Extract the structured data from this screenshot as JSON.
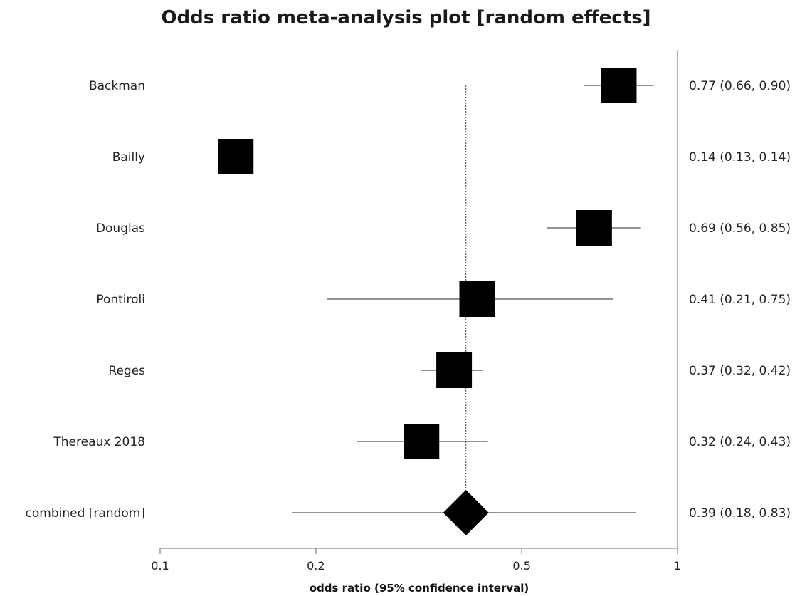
{
  "chart_data": {
    "type": "forest",
    "title": "Odds ratio meta-analysis plot [random effects]",
    "xlabel": "odds ratio (95% confidence interval)",
    "x_scale": "log",
    "xlim": [
      0.1,
      1
    ],
    "x_ticks": [
      {
        "value": 0.1,
        "label": "0.1"
      },
      {
        "value": 0.2,
        "label": "0.2"
      },
      {
        "value": 0.5,
        "label": "0.5"
      },
      {
        "value": 1,
        "label": "1"
      }
    ],
    "pooled_reference_line": 0.39,
    "studies": [
      {
        "name": "Backman",
        "or": 0.77,
        "lower": 0.66,
        "upper": 0.9,
        "ci_text": "0.77 (0.66, 0.90)"
      },
      {
        "name": "Bailly",
        "or": 0.14,
        "lower": 0.13,
        "upper": 0.14,
        "ci_text": "0.14 (0.13, 0.14)"
      },
      {
        "name": "Douglas",
        "or": 0.69,
        "lower": 0.56,
        "upper": 0.85,
        "ci_text": "0.69 (0.56, 0.85)"
      },
      {
        "name": "Pontiroli",
        "or": 0.41,
        "lower": 0.21,
        "upper": 0.75,
        "ci_text": "0.41 (0.21, 0.75)"
      },
      {
        "name": "Reges",
        "or": 0.37,
        "lower": 0.32,
        "upper": 0.42,
        "ci_text": "0.37 (0.32, 0.42)"
      },
      {
        "name": "Thereaux 2018",
        "or": 0.32,
        "lower": 0.24,
        "upper": 0.43,
        "ci_text": "0.32 (0.24, 0.43)"
      }
    ],
    "combined": {
      "name": "combined [random]",
      "or": 0.39,
      "lower": 0.18,
      "upper": 0.83,
      "ci_text": "0.39 (0.18, 0.83)"
    },
    "colors": {
      "marker": "#000000",
      "line": "#555555"
    }
  }
}
